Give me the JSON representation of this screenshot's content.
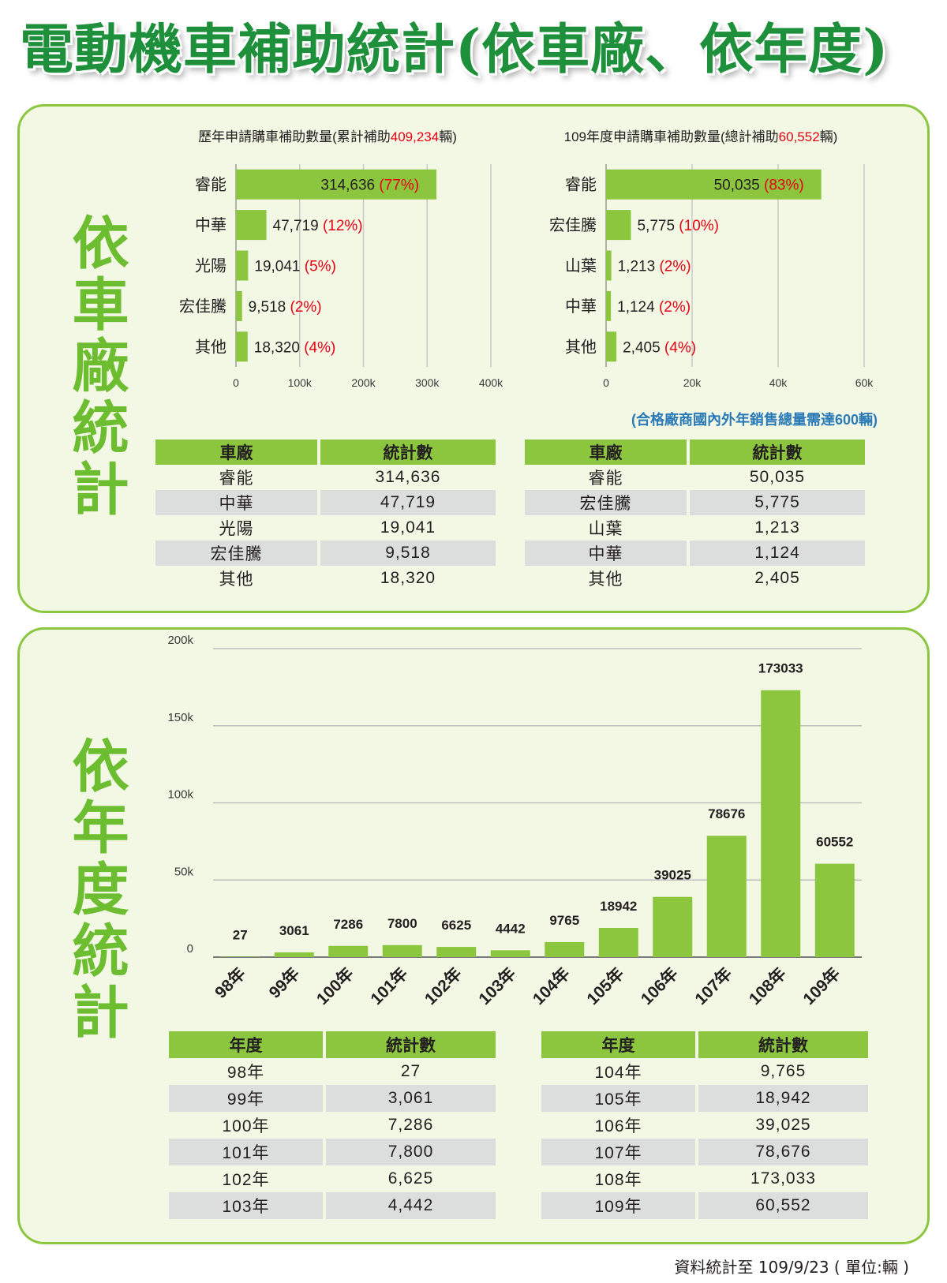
{
  "title": "電動機車補助統計(依車廠、依年度)",
  "panel1": {
    "side_title": "依車廠統計",
    "note": "(合格廠商國內外年銷售總量需達600輛)",
    "table_headers": [
      "車廠",
      "統計數"
    ]
  },
  "panel2": {
    "side_title": "依年度統計",
    "table_headers": [
      "年度",
      "統計數"
    ]
  },
  "footnote": "資料統計至 109/9/23 ( 單位:輛 )",
  "colors": {
    "accent": "#8cc63f",
    "title": "#1e8f3a",
    "pct": "#e60012",
    "note": "#2a7ab8",
    "shade": "#dcdddd"
  },
  "chart_data": [
    {
      "type": "bar",
      "orientation": "horizontal",
      "title_parts": [
        "歷年申請購車補助數量(累計補助",
        "409,234",
        "輛)"
      ],
      "categories": [
        "睿能",
        "中華",
        "光陽",
        "宏佳騰",
        "其他"
      ],
      "values": [
        314636,
        47719,
        19041,
        9518,
        18320
      ],
      "value_labels": [
        "314,636",
        "47,719",
        "19,041",
        "9,518",
        "18,320"
      ],
      "pct_labels": [
        "(77%)",
        "(12%)",
        "(5%)",
        "(2%)",
        "(4%)"
      ],
      "xlim": [
        0,
        400000
      ],
      "xticks": [
        "0",
        "100k",
        "200k",
        "300k",
        "400k"
      ],
      "grid": true
    },
    {
      "type": "bar",
      "orientation": "horizontal",
      "title_parts": [
        "109年度申請購車補助數量(總計補助",
        "60,552",
        "輛)"
      ],
      "categories": [
        "睿能",
        "宏佳騰",
        "山葉",
        "中華",
        "其他"
      ],
      "values": [
        50035,
        5775,
        1213,
        1124,
        2405
      ],
      "value_labels": [
        "50,035",
        "5,775",
        "1,213",
        "1,124",
        "2,405"
      ],
      "pct_labels": [
        "(83%)",
        "(10%)",
        "(2%)",
        "(2%)",
        "(4%)"
      ],
      "xlim": [
        0,
        60000
      ],
      "xticks": [
        "0",
        "20k",
        "40k",
        "60k"
      ],
      "grid": true
    },
    {
      "type": "bar",
      "orientation": "vertical",
      "categories": [
        "98年",
        "99年",
        "100年",
        "101年",
        "102年",
        "103年",
        "104年",
        "105年",
        "106年",
        "107年",
        "108年",
        "109年"
      ],
      "values": [
        27,
        3061,
        7286,
        7800,
        6625,
        4442,
        9765,
        18942,
        39025,
        78676,
        173033,
        60552
      ],
      "ylim": [
        0,
        200000
      ],
      "yticks": [
        "0",
        "50k",
        "100k",
        "150k",
        "200k"
      ],
      "grid": true
    }
  ],
  "tables": {
    "brand_all": [
      [
        "睿能",
        "314,636"
      ],
      [
        "中華",
        "47,719"
      ],
      [
        "光陽",
        "19,041"
      ],
      [
        "宏佳騰",
        "9,518"
      ],
      [
        "其他",
        "18,320"
      ]
    ],
    "brand_109": [
      [
        "睿能",
        "50,035"
      ],
      [
        "宏佳騰",
        "5,775"
      ],
      [
        "山葉",
        "1,213"
      ],
      [
        "中華",
        "1,124"
      ],
      [
        "其他",
        "2,405"
      ]
    ],
    "year_left": [
      [
        "98年",
        "27"
      ],
      [
        "99年",
        "3,061"
      ],
      [
        "100年",
        "7,286"
      ],
      [
        "101年",
        "7,800"
      ],
      [
        "102年",
        "6,625"
      ],
      [
        "103年",
        "4,442"
      ]
    ],
    "year_right": [
      [
        "104年",
        "9,765"
      ],
      [
        "105年",
        "18,942"
      ],
      [
        "106年",
        "39,025"
      ],
      [
        "107年",
        "78,676"
      ],
      [
        "108年",
        "173,033"
      ],
      [
        "109年",
        "60,552"
      ]
    ]
  }
}
